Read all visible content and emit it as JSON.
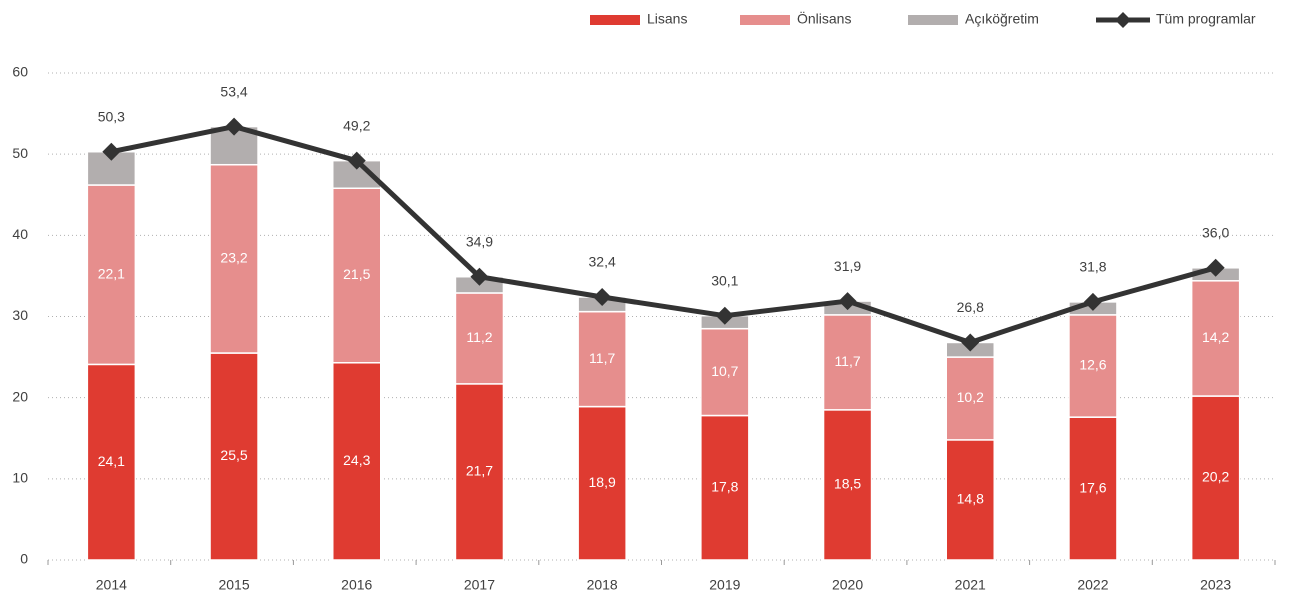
{
  "chart_data": {
    "type": "bar",
    "stacked": true,
    "categories": [
      "2014",
      "2015",
      "2016",
      "2017",
      "2018",
      "2019",
      "2020",
      "2021",
      "2022",
      "2023"
    ],
    "series": [
      {
        "name": "Lisans",
        "color": "#df3b31",
        "values": [
          24.1,
          25.5,
          24.3,
          21.7,
          18.9,
          17.8,
          18.5,
          14.8,
          17.6,
          20.2
        ],
        "value_labels": [
          "24,1",
          "25,5",
          "24,3",
          "21,7",
          "18,9",
          "17,8",
          "18,5",
          "14,8",
          "17,6",
          "20,2"
        ]
      },
      {
        "name": "Önlisans",
        "color": "#e68e8d",
        "values": [
          22.1,
          23.2,
          21.5,
          11.2,
          11.7,
          10.7,
          11.7,
          10.2,
          12.6,
          14.2
        ],
        "value_labels": [
          "22,1",
          "23,2",
          "21,5",
          "11,2",
          "11,7",
          "10,7",
          "11,7",
          "10,2",
          "12,6",
          "14,2"
        ]
      },
      {
        "name": "Açıköğretim",
        "color": "#b2aeae",
        "values": [
          4.1,
          4.7,
          3.4,
          2.0,
          1.8,
          1.6,
          1.7,
          1.8,
          1.6,
          1.6
        ]
      },
      {
        "name": "Tüm programlar",
        "type": "line",
        "color": "#333333",
        "values": [
          50.3,
          53.4,
          49.2,
          34.9,
          32.4,
          30.1,
          31.9,
          26.8,
          31.8,
          36.0
        ],
        "value_labels": [
          "50,3",
          "53,4",
          "49,2",
          "34,9",
          "32,4",
          "30,1",
          "31,9",
          "26,8",
          "31,8",
          "36,0"
        ]
      }
    ],
    "ylim": [
      0,
      60
    ],
    "yticks": [
      0,
      10,
      20,
      30,
      40,
      50,
      60
    ],
    "grid": true,
    "legend": "top-right"
  }
}
